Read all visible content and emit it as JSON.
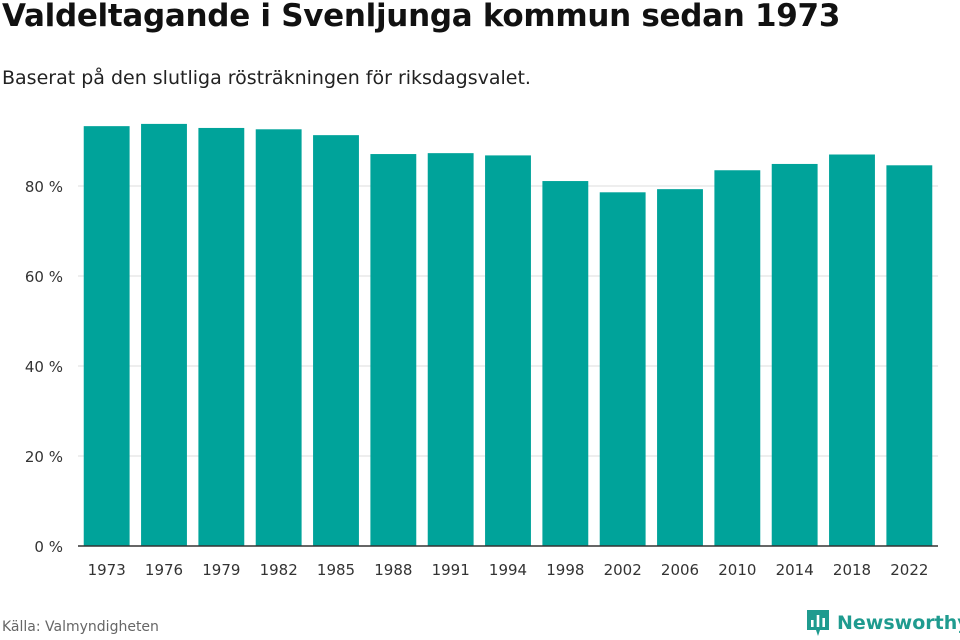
{
  "header": {
    "title": "Valdeltagande i Svenljunga kommun sedan 1973",
    "subtitle": "Baserat på den slutliga rösträkningen för riksdagsvalet."
  },
  "footer": {
    "source": "Källa: Valmyndigheten",
    "brand": "Newsworthy",
    "brand_icon": "newsworthy-logo-icon"
  },
  "colors": {
    "bar": "#00a39a",
    "grid": "#dddddd",
    "axis": "#333333",
    "brand": "#1f9b8f"
  },
  "chart_data": {
    "type": "bar",
    "title": "Valdeltagande i Svenljunga kommun sedan 1973",
    "subtitle": "Baserat på den slutliga rösträkningen för riksdagsvalet.",
    "xlabel": "",
    "ylabel": "",
    "categories": [
      "1973",
      "1976",
      "1979",
      "1982",
      "1985",
      "1988",
      "1991",
      "1994",
      "1998",
      "2002",
      "2006",
      "2010",
      "2014",
      "2018",
      "2022"
    ],
    "values": [
      93.3,
      93.8,
      92.9,
      92.6,
      91.3,
      87.1,
      87.3,
      86.8,
      81.1,
      78.6,
      79.3,
      83.5,
      84.9,
      87.0,
      84.6
    ],
    "ylim": [
      0,
      100
    ],
    "yticks": [
      0,
      20,
      40,
      60,
      80
    ],
    "ytick_labels": [
      "0 %",
      "20 %",
      "40 %",
      "60 %",
      "80 %"
    ],
    "grid": true,
    "legend": "none"
  }
}
